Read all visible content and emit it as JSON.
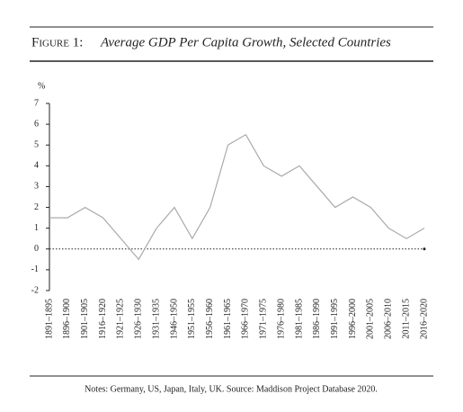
{
  "chart_data": {
    "type": "line",
    "figure_label": "Figure 1:",
    "title": "Average GDP Per Capita Growth, Selected Countries",
    "y_label": "%",
    "categories": [
      "1891–1895",
      "1896–1900",
      "1901–1905",
      "1916–1920",
      "1921–1925",
      "1926–1930",
      "1931–1935",
      "1946–1950",
      "1951–1955",
      "1956–1960",
      "1961–1965",
      "1966–1970",
      "1971–1975",
      "1976–1980",
      "1981–1985",
      "1986–1990",
      "1991–1995",
      "1996–2000",
      "2001–2005",
      "2006–2010",
      "2011–2015",
      "2016–2020"
    ],
    "values": [
      1.5,
      1.5,
      2,
      1.5,
      0.5,
      -0.5,
      1,
      2,
      0.5,
      2,
      5,
      5.5,
      4,
      3.5,
      4,
      3,
      2,
      2.5,
      2,
      1,
      0.5,
      1
    ],
    "color": "#aaaaaa",
    "ylim": [
      -2,
      7
    ],
    "yticks": [
      -2,
      -1,
      0,
      1,
      2,
      3,
      4,
      5,
      6,
      7
    ],
    "notes": "Notes: Germany, US, Japan, Italy, UK. Source: Maddison Project Database 2020."
  }
}
